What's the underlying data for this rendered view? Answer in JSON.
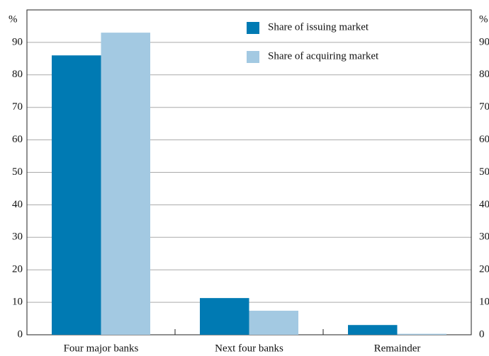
{
  "chart_data": {
    "type": "bar",
    "y_label": "%",
    "y2_label": "%",
    "categories": [
      "Four major banks",
      "Next four banks",
      "Remainder"
    ],
    "series": [
      {
        "name": "Share of issuing market",
        "color": "#007ab3",
        "values": [
          86,
          11.3,
          3
        ]
      },
      {
        "name": "Share of acquiring market",
        "color": "#a3c9e2",
        "values": [
          93,
          7.4,
          0.3
        ]
      }
    ],
    "ylim": [
      0,
      100
    ],
    "yticks": [
      0,
      10,
      20,
      30,
      40,
      50,
      60,
      70,
      80,
      90
    ],
    "y2lim": [
      0,
      100
    ],
    "y2ticks": [
      0,
      10,
      20,
      30,
      40,
      50,
      60,
      70,
      80,
      90
    ],
    "grid": true,
    "legend": "top-right"
  }
}
